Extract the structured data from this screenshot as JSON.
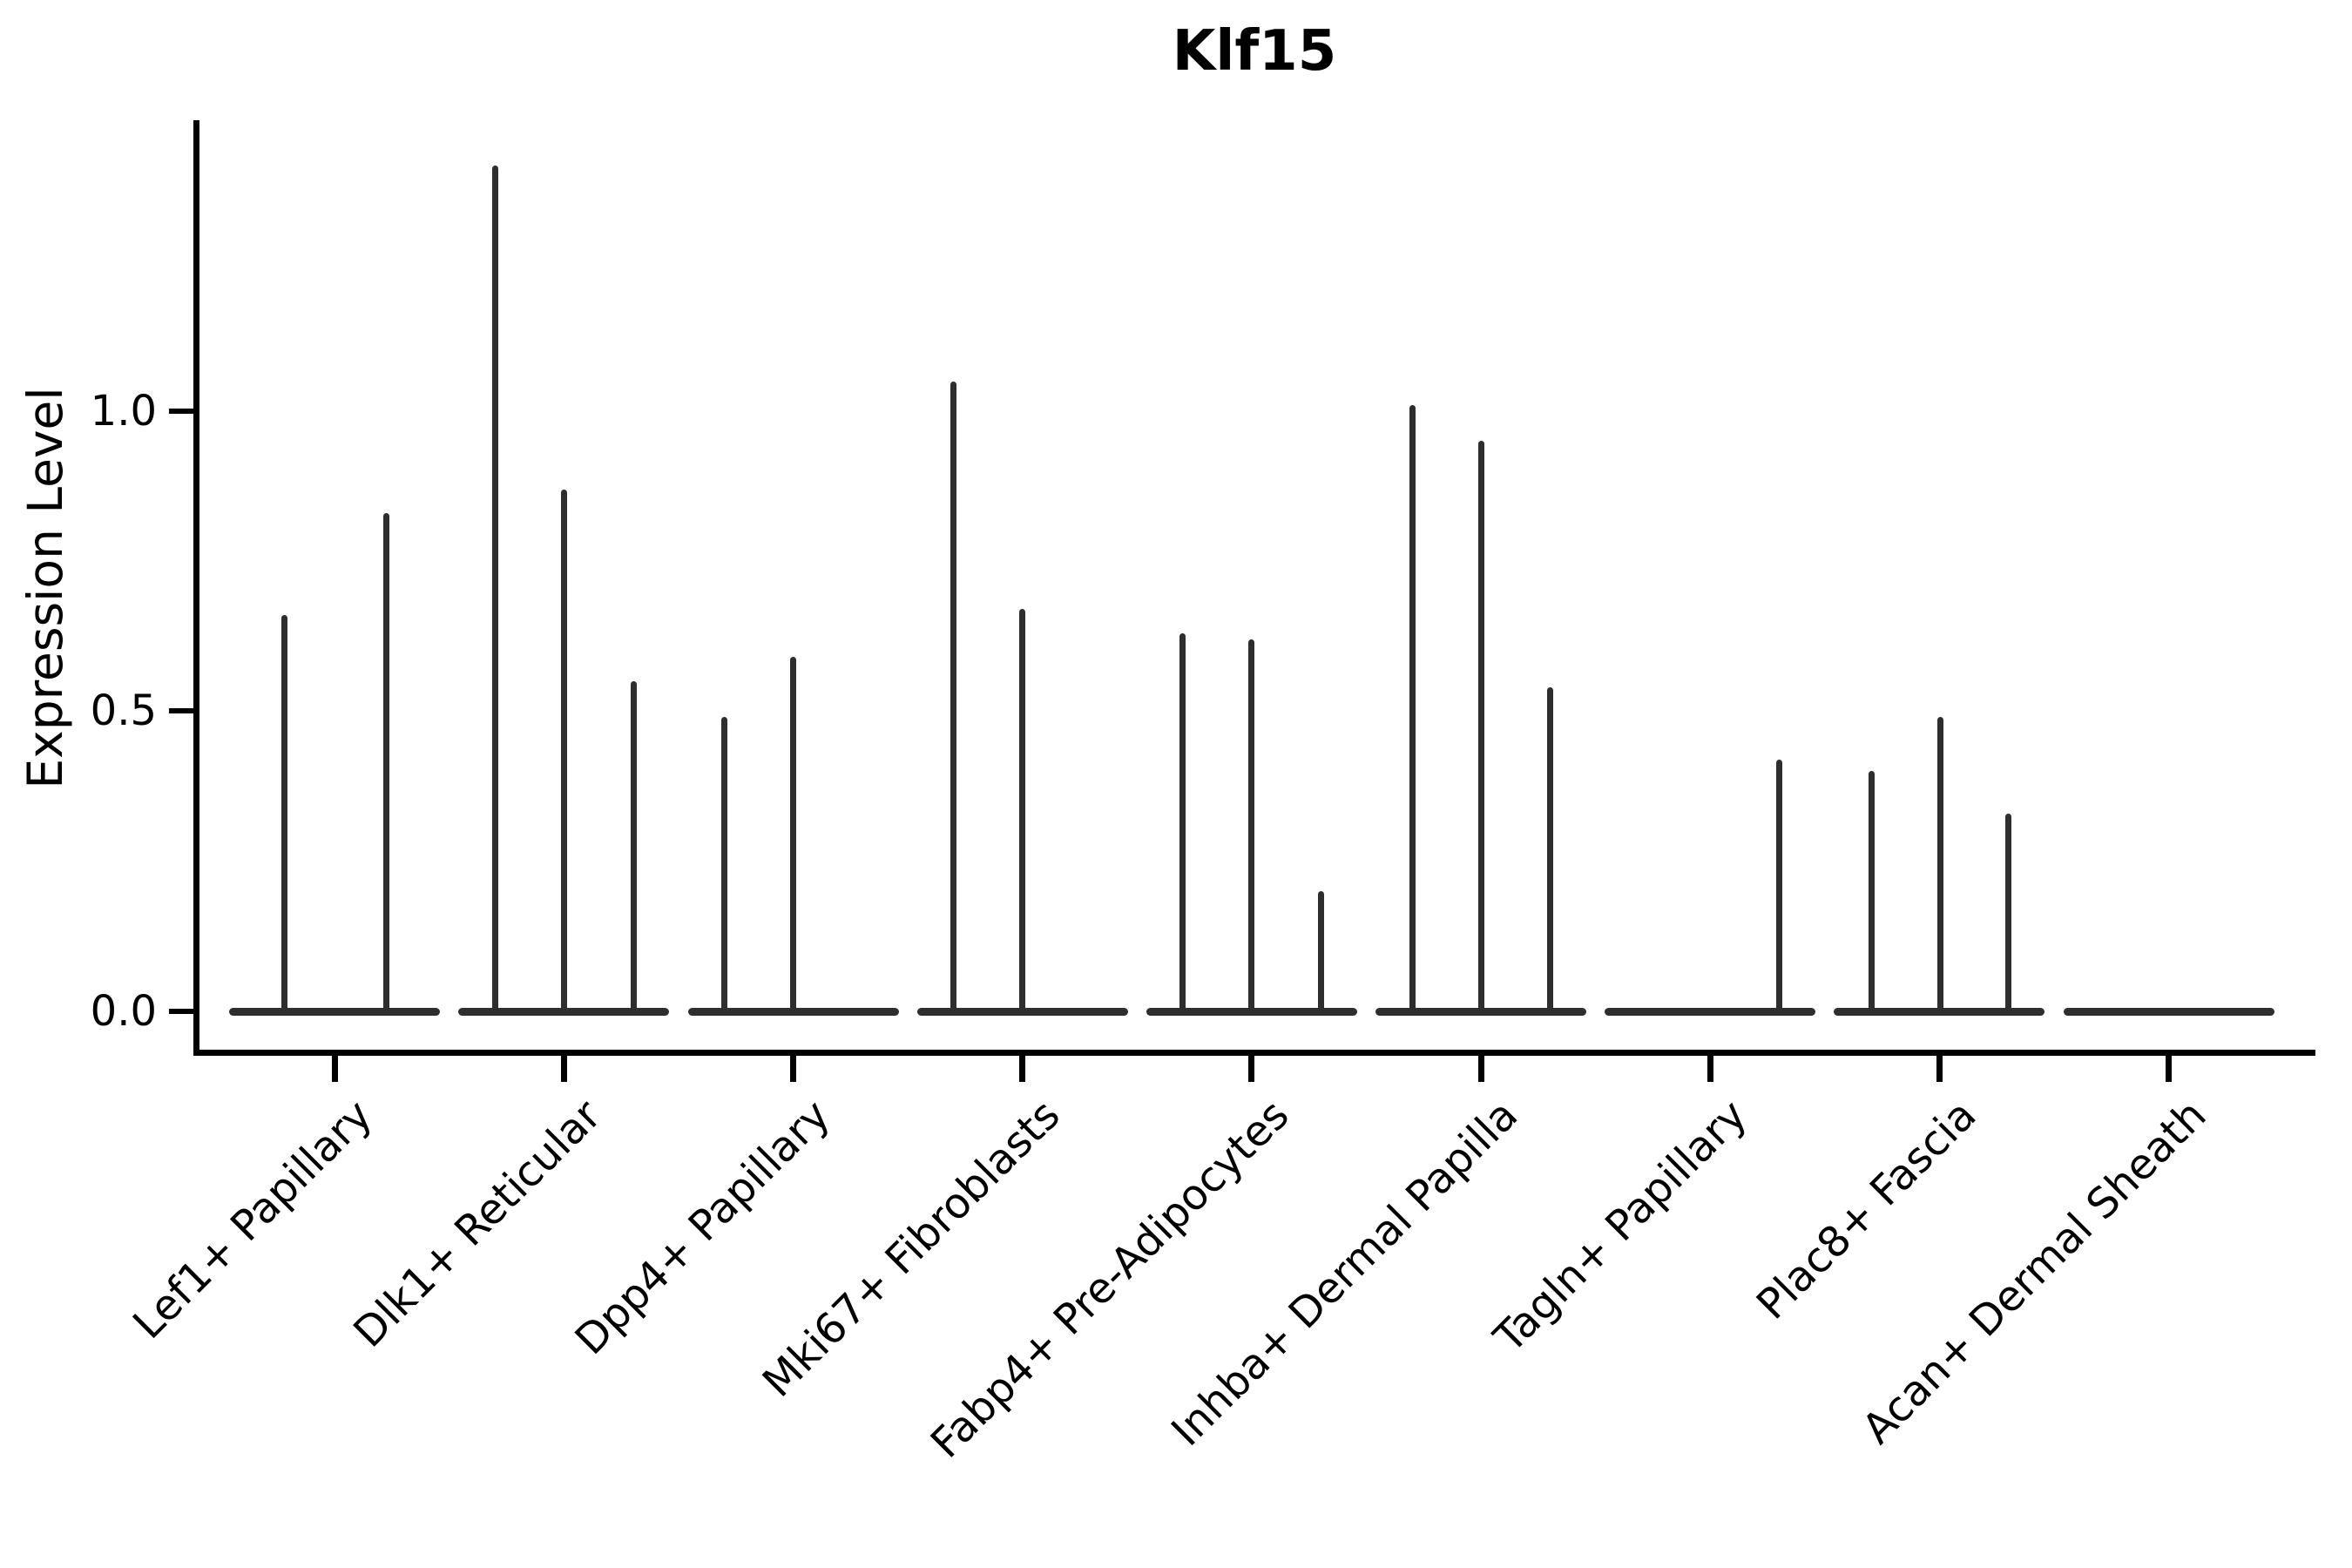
{
  "figure": {
    "title": "Klf15",
    "ylabel": "Expression Level",
    "background_color": "#ffffff",
    "axis_color": "#000000",
    "violin_color": "#2e2e2e"
  },
  "chart_data": {
    "type": "violin",
    "title": "Klf15",
    "xlabel": "",
    "ylabel": "Expression Level",
    "ylim": [
      -0.07,
      1.48
    ],
    "yticks": [
      0.0,
      0.5,
      1.0
    ],
    "ytick_labels": [
      "0.0",
      "0.5",
      "1.0"
    ],
    "grid": false,
    "legend": false,
    "categories": [
      "Lef1+ Papillary",
      "Dlk1+ Reticular",
      "Dpp4+ Papillary",
      "Mki67+ Fibroblasts",
      "Fabp4+ Pre-Adipocytes",
      "Inhba+ Dermal Papilla",
      "Tagln+ Papillary",
      "Plac8+ Fascia",
      "Acan+ Dermal Sheath"
    ],
    "series": [
      {
        "name": "Lef1+ Papillary",
        "violins": [
          {
            "x_offset": -58,
            "max_expression": 0.66
          },
          {
            "x_offset": 59,
            "max_expression": 0.83
          }
        ]
      },
      {
        "name": "Dlk1+ Reticular",
        "violins": [
          {
            "x_offset": -79,
            "max_expression": 1.41
          },
          {
            "x_offset": 0,
            "max_expression": 0.87
          },
          {
            "x_offset": 80,
            "max_expression": 0.55
          }
        ]
      },
      {
        "name": "Dpp4+ Papillary",
        "violins": [
          {
            "x_offset": -79,
            "max_expression": 0.49
          },
          {
            "x_offset": 0,
            "max_expression": 0.59
          }
        ]
      },
      {
        "name": "Mki67+ Fibroblasts",
        "violins": [
          {
            "x_offset": -79,
            "max_expression": 1.05
          },
          {
            "x_offset": 0,
            "max_expression": 0.67
          }
        ]
      },
      {
        "name": "Fabp4+ Pre-Adipocytes",
        "violins": [
          {
            "x_offset": -79,
            "max_expression": 0.63
          },
          {
            "x_offset": 0,
            "max_expression": 0.62
          },
          {
            "x_offset": 80,
            "max_expression": 0.2
          }
        ]
      },
      {
        "name": "Inhba+ Dermal Papilla",
        "violins": [
          {
            "x_offset": -79,
            "max_expression": 1.01
          },
          {
            "x_offset": 0,
            "max_expression": 0.95
          },
          {
            "x_offset": 79,
            "max_expression": 0.54
          }
        ]
      },
      {
        "name": "Tagln+ Papillary",
        "violins": [
          {
            "x_offset": 79,
            "max_expression": 0.42
          }
        ]
      },
      {
        "name": "Plac8+ Fascia",
        "violins": [
          {
            "x_offset": -78,
            "max_expression": 0.4
          },
          {
            "x_offset": 1,
            "max_expression": 0.49
          },
          {
            "x_offset": 79,
            "max_expression": 0.33
          }
        ]
      },
      {
        "name": "Acan+ Dermal Sheath",
        "violins": []
      }
    ]
  }
}
